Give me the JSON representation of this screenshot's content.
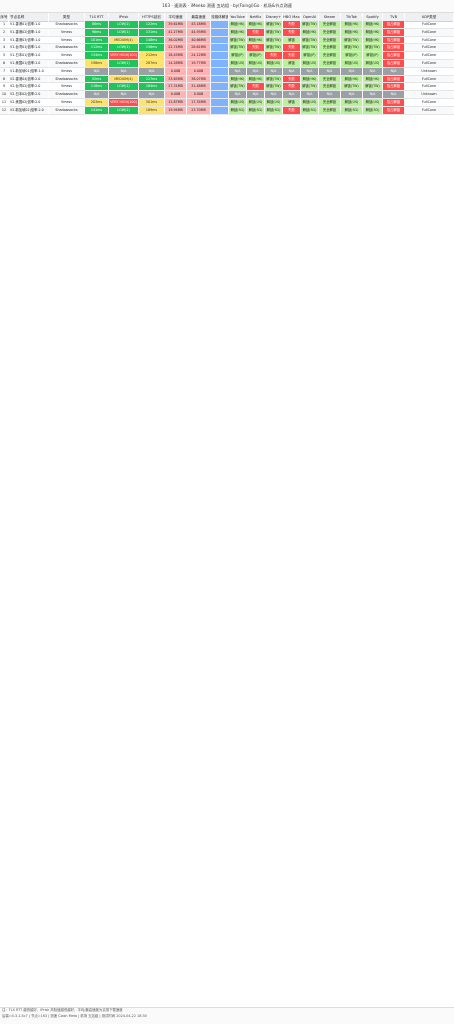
{
  "title": "163 · 速测表 · iMeeko 测速 五站组 · by(Faingi)Go · 机场&节点测速",
  "headers": [
    "序号",
    "节点名称",
    "类型",
    "TLS RTT",
    "IPrisk",
    "HTTPS延迟",
    "平均速度",
    "最高速度",
    "流媒体解锁",
    "YouTube",
    "Netflix",
    "Disney+",
    "HBO Max",
    "OpenAI",
    "Steam",
    "TikTok",
    "Spotify",
    "TVB",
    "UDP类型"
  ],
  "rows": [
    {
      "n": "1",
      "name": "V1-香港01|倍率:1.0",
      "type": "Shadowsocks",
      "tls": "88ms",
      "risk": "LOW(1)",
      "https": "122ms",
      "avg": "39.61MB",
      "max": "43.18MB",
      "yt": "解锁(HK)",
      "nf": "解锁(HK)",
      "dp": "解锁(TW)",
      "hbo": "失败",
      "ai": "解锁(TW)",
      "st": "完全解锁",
      "tt": "解锁(HK)",
      "sp": "解锁(HK)",
      "tvb": "独占解锁",
      "udp": "FullCone"
    },
    {
      "n": "2",
      "name": "V1-香港02|倍率:1.0",
      "type": "Vmess",
      "tls": "96ms",
      "risk": "LOW(1)",
      "https": "131ms",
      "avg": "41.27MB",
      "max": "44.93MB",
      "yt": "解锁(HK)",
      "nf": "失败",
      "dp": "解锁(TW)",
      "hbo": "失败",
      "ai": "解锁(HK)",
      "st": "完全解锁",
      "tt": "解锁(HK)",
      "sp": "解锁(HK)",
      "tvb": "独占解锁",
      "udp": "FullCone"
    },
    {
      "n": "3",
      "name": "V1-香港03|倍率:1.0",
      "type": "Vmess",
      "tls": "101ms",
      "risk": "MEDIUM(4)",
      "https": "148ms",
      "avg": "36.02MB",
      "max": "40.66MB",
      "yt": "解锁(TW)",
      "nf": "解锁(HK)",
      "dp": "解锁(TW)",
      "hbo": "解锁",
      "ai": "解锁(TW)",
      "st": "完全解锁",
      "tt": "解锁(TW)",
      "sp": "解锁(HK)",
      "tvb": "独占解锁",
      "udp": "FullCone"
    },
    {
      "n": "4",
      "name": "V1-台湾01|倍率:1.0",
      "type": "Shadowsocks",
      "tls": "112ms",
      "risk": "LOW(1)",
      "https": "156ms",
      "avg": "22.74MB",
      "max": "28.61MB",
      "yt": "解锁(TW)",
      "nf": "失败",
      "dp": "解锁(TW)",
      "hbo": "失败",
      "ai": "解锁(TW)",
      "st": "完全解锁",
      "tt": "解锁(TW)",
      "sp": "解锁(TW)",
      "tvb": "独占解锁",
      "udp": "FullCone"
    },
    {
      "n": "5",
      "name": "V1-日本01|倍率:1.0",
      "type": "Vmess",
      "tls": "134ms",
      "risk": "VERY HIGH(100)",
      "https": "212ms",
      "avg": "18.45MB",
      "max": "24.12MB",
      "yt": "解锁(JP)",
      "nf": "解锁(JP)",
      "dp": "失败",
      "hbo": "失败",
      "ai": "解锁(JP)",
      "st": "完全解锁",
      "tt": "解锁(JP)",
      "sp": "解锁(JP)",
      "tvb": "独占解锁",
      "udp": "FullCone"
    },
    {
      "n": "6",
      "name": "V1-美国01|倍率:1.0",
      "type": "Shadowsocks",
      "tls": "198ms",
      "risk": "LOW(1)",
      "https": "287ms",
      "avg": "14.28MB",
      "max": "19.77MB",
      "yt": "解锁(US)",
      "nf": "解锁(US)",
      "dp": "解锁(US)",
      "hbo": "解锁",
      "ai": "解锁(US)",
      "st": "完全解锁",
      "tt": "解锁(US)",
      "sp": "解锁(US)",
      "tvb": "独占解锁",
      "udp": "FullCone"
    },
    {
      "n": "7",
      "name": "V1-新加坡01|倍率:1.0",
      "type": "Vmess",
      "tls": "N/A",
      "risk": "N/A",
      "https": "N/A",
      "avg": "0.00B",
      "max": "0.00B",
      "yt": "N/A",
      "nf": "N/A",
      "dp": "N/A",
      "hbo": "N/A",
      "ai": "N/A",
      "st": "N/A",
      "tt": "N/A",
      "sp": "N/A",
      "tvb": "N/A",
      "udp": "Unknown"
    },
    {
      "n": "8",
      "name": "V2-香港04|倍率:2.0",
      "type": "Shadowsocks",
      "tls": "92ms",
      "risk": "MEDIUM(4)",
      "https": "127ms",
      "avg": "33.65MB",
      "max": "38.07MB",
      "yt": "解锁(HK)",
      "nf": "解锁(HK)",
      "dp": "解锁(TW)",
      "hbo": "失败",
      "ai": "解锁(HK)",
      "st": "完全解锁",
      "tt": "解锁(HK)",
      "sp": "解锁(HK)",
      "tvb": "独占解锁",
      "udp": "FullCone"
    },
    {
      "n": "9",
      "name": "V2-台湾02|倍率:2.0",
      "type": "Vmess",
      "tls": "118ms",
      "risk": "LOW(1)",
      "https": "164ms",
      "avg": "27.31MB",
      "max": "31.48MB",
      "yt": "解锁(TW)",
      "nf": "失败",
      "dp": "解锁(TW)",
      "hbo": "失败",
      "ai": "解锁(TW)",
      "st": "完全解锁",
      "tt": "解锁(TW)",
      "sp": "解锁(TW)",
      "tvb": "独占解锁",
      "udp": "FullCone"
    },
    {
      "n": "10",
      "name": "V2-日本02|倍率:2.0",
      "type": "Shadowsocks",
      "tls": "N/A",
      "risk": "N/A",
      "https": "N/A",
      "avg": "0.00B",
      "max": "0.00B",
      "yt": "N/A",
      "nf": "N/A",
      "dp": "N/A",
      "hbo": "N/A",
      "ai": "N/A",
      "st": "N/A",
      "tt": "N/A",
      "sp": "N/A",
      "tvb": "N/A",
      "udp": "Unknown"
    },
    {
      "n": "11",
      "name": "V2-美国02|倍率:2.0",
      "type": "Vmess",
      "tls": "203ms",
      "risk": "VERY HIGH(100)",
      "https": "301ms",
      "avg": "12.87MB",
      "max": "17.35MB",
      "yt": "解锁(US)",
      "nf": "解锁(US)",
      "dp": "解锁(US)",
      "hbo": "解锁",
      "ai": "解锁(US)",
      "st": "完全解锁",
      "tt": "解锁(US)",
      "sp": "解锁(US)",
      "tvb": "独占解锁",
      "udp": "FullCone"
    },
    {
      "n": "12",
      "name": "V2-新加坡02|倍率:2.0",
      "type": "Shadowsocks",
      "tls": "141ms",
      "risk": "LOW(1)",
      "https": "189ms",
      "avg": "19.94MB",
      "max": "23.70MB",
      "yt": "解锁(SG)",
      "nf": "解锁(SG)",
      "dp": "解锁(SG)",
      "hbo": "失败",
      "ai": "解锁(SG)",
      "st": "完全解锁",
      "tt": "解锁(SG)",
      "sp": "解锁(SG)",
      "tvb": "独占解锁",
      "udp": "FullCone"
    }
  ],
  "footer": {
    "line1": "注：TLS RTT 越低越好，IPrisk 风险值越低越好，平均/最高速度为实测下载速度",
    "line2": "后端=4.3.1-5c7 | 节点=163 | 测速 Clash Meta | 机场 五站组 | 测试时间 2024-04-22 18:30"
  }
}
